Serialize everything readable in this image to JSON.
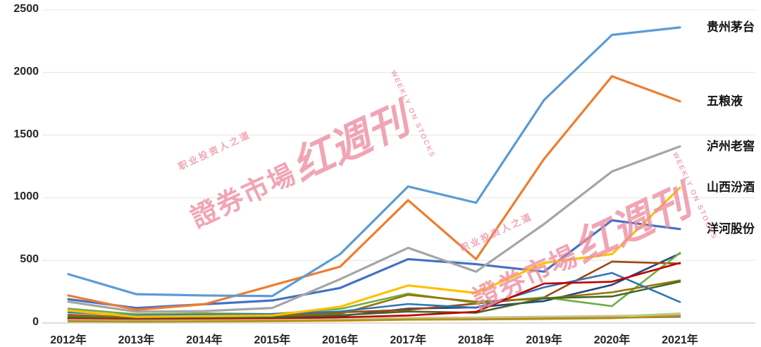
{
  "watermark": {
    "slogan": "职业投资人之道",
    "title": "證券市場",
    "script": "红週刊",
    "subtitle": "WEEKLY ON STOCKS",
    "color": "#ee8da0"
  },
  "chart_data": {
    "type": "line",
    "title": "",
    "xlabel": "",
    "ylabel": "",
    "x_categories": [
      "2012年",
      "2013年",
      "2014年",
      "2015年",
      "2016年",
      "2017年",
      "2018年",
      "2019年",
      "2020年",
      "2021年"
    ],
    "y_ticks": [
      0,
      500,
      1000,
      1500,
      2000,
      2500
    ],
    "ylim": [
      0,
      2500
    ],
    "grid": true,
    "legend_position": "right end-of-line labels",
    "series": [
      {
        "name": "贵州茅台",
        "color": "#5B9BD5",
        "labeled": true,
        "width": 3.2,
        "values": [
          390,
          230,
          220,
          215,
          550,
          1090,
          960,
          1780,
          2300,
          2360
        ]
      },
      {
        "name": "五粮液",
        "color": "#ED7D31",
        "labeled": true,
        "width": 3.2,
        "values": [
          220,
          105,
          150,
          300,
          450,
          980,
          510,
          1310,
          1970,
          1770
        ]
      },
      {
        "name": "泸州老窖",
        "color": "#A5A5A5",
        "labeled": true,
        "width": 3.2,
        "values": [
          170,
          90,
          95,
          120,
          350,
          600,
          410,
          790,
          1210,
          1410
        ]
      },
      {
        "name": "山西汾酒",
        "color": "#FFC000",
        "labeled": true,
        "width": 3.2,
        "values": [
          100,
          50,
          55,
          60,
          130,
          300,
          240,
          480,
          550,
          1080
        ]
      },
      {
        "name": "洋河股份",
        "color": "#4472C4",
        "labeled": true,
        "width": 3.2,
        "values": [
          190,
          120,
          150,
          180,
          280,
          510,
          470,
          410,
          820,
          750
        ]
      },
      {
        "name": "",
        "color": "#264478",
        "labeled": false,
        "width": 2.6,
        "values": [
          35,
          28,
          30,
          32,
          55,
          115,
          125,
          175,
          305,
          555
        ]
      },
      {
        "name": "",
        "color": "#9E480E",
        "labeled": false,
        "width": 2.6,
        "values": [
          65,
          45,
          52,
          58,
          85,
          105,
          155,
          205,
          490,
          475
        ]
      },
      {
        "name": "",
        "color": "#70AD47",
        "labeled": false,
        "width": 2.6,
        "values": [
          115,
          70,
          78,
          72,
          112,
          235,
          160,
          205,
          135,
          560
        ]
      },
      {
        "name": "",
        "color": "#997300",
        "labeled": false,
        "width": 2.6,
        "values": [
          55,
          42,
          46,
          52,
          72,
          225,
          170,
          195,
          245,
          340
        ]
      },
      {
        "name": "",
        "color": "#43682B",
        "labeled": false,
        "width": 2.6,
        "values": [
          45,
          36,
          40,
          46,
          62,
          92,
          82,
          198,
          212,
          330
        ]
      },
      {
        "name": "",
        "color": "#2E75B6",
        "labeled": false,
        "width": 2.6,
        "values": [
          85,
          60,
          66,
          72,
          92,
          152,
          122,
          285,
          400,
          168
        ]
      },
      {
        "name": "",
        "color": "#C00000",
        "labeled": false,
        "width": 2.6,
        "values": [
          30,
          25,
          28,
          32,
          45,
          60,
          90,
          315,
          330,
          480
        ]
      },
      {
        "name": "",
        "color": "#F4B183",
        "labeled": false,
        "width": 2.4,
        "values": [
          25,
          20,
          22,
          25,
          30,
          42,
          45,
          52,
          58,
          65
        ]
      },
      {
        "name": "",
        "color": "#A9D18E",
        "labeled": false,
        "width": 2.4,
        "values": [
          20,
          15,
          18,
          20,
          26,
          36,
          40,
          45,
          52,
          78
        ]
      },
      {
        "name": "",
        "color": "#7F7F7F",
        "labeled": false,
        "width": 2.4,
        "values": [
          15,
          12,
          14,
          16,
          20,
          28,
          30,
          36,
          42,
          48
        ]
      },
      {
        "name": "",
        "color": "#BF8F00",
        "labeled": false,
        "width": 2.4,
        "values": [
          12,
          10,
          12,
          14,
          18,
          26,
          28,
          32,
          38,
          58
        ]
      }
    ]
  }
}
